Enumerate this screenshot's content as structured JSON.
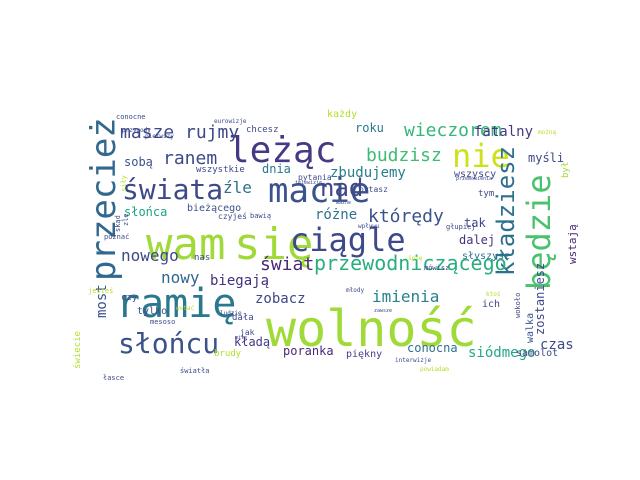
{
  "word_cloud": {
    "background": "#ffffff",
    "words": [
      {
        "text": "wolność",
        "color": "#a0da39"
      },
      {
        "text": "wam",
        "color": "#a0da39"
      },
      {
        "text": "się",
        "color": "#a0da39"
      },
      {
        "text": "leżąc",
        "color": "#443a83"
      },
      {
        "text": "macie",
        "color": "#3b528b"
      },
      {
        "text": "ramię",
        "color": "#2a788e"
      },
      {
        "text": "ciągle",
        "color": "#3e4989"
      },
      {
        "text": "przecież",
        "color": "#31688e"
      },
      {
        "text": "świata",
        "color": "#3e4989"
      },
      {
        "text": "nie",
        "color": "#cde11d"
      },
      {
        "text": "będzie",
        "color": "#4ac16d"
      },
      {
        "text": "nad",
        "color": "#3f4788"
      },
      {
        "text": "słońcu",
        "color": "#3b528b"
      },
      {
        "text": "kładziesz",
        "color": "#2d708e"
      },
      {
        "text": "przewodniczącego",
        "color": "#29af7f"
      },
      {
        "text": "wieczorem",
        "color": "#35b779"
      },
      {
        "text": "masze rujmy",
        "color": "#3e4989"
      },
      {
        "text": "ranem",
        "color": "#3e4989"
      },
      {
        "text": "świat",
        "color": "#482878"
      },
      {
        "text": "budzisz",
        "color": "#3dbc74"
      },
      {
        "text": "zbudujemy",
        "color": "#287d8e"
      },
      {
        "text": "którędy",
        "color": "#3b528b"
      },
      {
        "text": "imienia",
        "color": "#26828e"
      },
      {
        "text": "nowego",
        "color": "#3e4989"
      },
      {
        "text": "nowy",
        "color": "#31688e"
      },
      {
        "text": "fatalny",
        "color": "#443983"
      },
      {
        "text": "różne",
        "color": "#2c728e"
      },
      {
        "text": "most",
        "color": "#3b528b"
      },
      {
        "text": "źle",
        "color": "#2d708e"
      },
      {
        "text": "czas",
        "color": "#3e4989"
      },
      {
        "text": "zobacz",
        "color": "#3e4989"
      },
      {
        "text": "biegają",
        "color": "#472d7b"
      },
      {
        "text": "dalej",
        "color": "#46337f"
      },
      {
        "text": "poranka",
        "color": "#482878"
      },
      {
        "text": "siódmego",
        "color": "#22a884"
      },
      {
        "text": "conocna",
        "color": "#2c728e"
      },
      {
        "text": "piękny",
        "color": "#433e85"
      },
      {
        "text": "kładą",
        "color": "#443983"
      },
      {
        "text": "sobą",
        "color": "#3b528b"
      },
      {
        "text": "dnia",
        "color": "#2a788e"
      },
      {
        "text": "tak",
        "color": "#3e4989"
      },
      {
        "text": "myśli",
        "color": "#3e4989"
      },
      {
        "text": "wszyscy",
        "color": "#3e4989"
      },
      {
        "text": "walka",
        "color": "#3b528b"
      },
      {
        "text": "zostaniesz",
        "color": "#3e4989"
      },
      {
        "text": "słyszysz",
        "color": "#2c728e"
      },
      {
        "text": "wstają",
        "color": "#482878"
      },
      {
        "text": "ich",
        "color": "#3e4989"
      },
      {
        "text": "samolot",
        "color": "#3e4989"
      },
      {
        "text": "bieżącego",
        "color": "#3b528b"
      },
      {
        "text": "słońca",
        "color": "#20a386"
      },
      {
        "text": "roku",
        "color": "#2a788e"
      },
      {
        "text": "każdy",
        "color": "#b5de2b"
      },
      {
        "text": "chcesz",
        "color": "#3e4989"
      },
      {
        "text": "wszystkie",
        "color": "#3e4989"
      },
      {
        "text": "czy",
        "color": "#3e4989"
      },
      {
        "text": "tylko",
        "color": "#3b528b"
      },
      {
        "text": "nas",
        "color": "#3e4989"
      },
      {
        "text": "brudy",
        "color": "#b5de2b"
      },
      {
        "text": "dała",
        "color": "#3e4989"
      },
      {
        "text": "jak",
        "color": "#3e4989"
      },
      {
        "text": "tym",
        "color": "#3e4989"
      },
      {
        "text": "pytasz",
        "color": "#3e4989"
      },
      {
        "text": "pytania",
        "color": "#3e4989"
      },
      {
        "text": "czyjeś",
        "color": "#3e4989"
      },
      {
        "text": "bawią",
        "color": "#3e4989"
      },
      {
        "text": "głupiej",
        "color": "#3e4989"
      },
      {
        "text": "mówisz",
        "color": "#3e4989"
      },
      {
        "text": "ludzie",
        "color": "#3e4989"
      },
      {
        "text": "świecie",
        "color": "#b5de2b"
      },
      {
        "text": "jesteś",
        "color": "#b5de2b"
      },
      {
        "text": "poznać",
        "color": "#3e4989"
      },
      {
        "text": "przygody",
        "color": "#3e4989"
      },
      {
        "text": "był",
        "color": "#a0da39"
      },
      {
        "text": "wpływu",
        "color": "#3e4989"
      },
      {
        "text": "młody",
        "color": "#3e4989"
      },
      {
        "text": "łasce",
        "color": "#3e4989"
      },
      {
        "text": "światła",
        "color": "#3e4989"
      },
      {
        "text": "wstać",
        "color": "#b5de2b"
      },
      {
        "text": "mesoso",
        "color": "#3e4989"
      },
      {
        "text": "powiadam",
        "color": "#b5de2b"
      },
      {
        "text": "interwizje",
        "color": "#3e4989"
      },
      {
        "text": "wokoło",
        "color": "#3e4989"
      },
      {
        "text": "conocne",
        "color": "#3e4989"
      },
      {
        "text": "eurowizje",
        "color": "#3e4989"
      },
      {
        "text": "możną",
        "color": "#b5de2b"
      },
      {
        "text": "pierwszy",
        "color": "#3e4989"
      },
      {
        "text": "skąd",
        "color": "#3e4989"
      },
      {
        "text": "telewizje",
        "color": "#3e4989"
      },
      {
        "text": "przemówienia",
        "color": "#3e4989"
      },
      {
        "text": "zawsze",
        "color": "#3e4989"
      },
      {
        "text": "siły",
        "color": "#b5de2b"
      },
      {
        "text": "zle",
        "color": "#3e4989"
      },
      {
        "text": "ktoś",
        "color": "#b5de2b"
      },
      {
        "text": "mile",
        "color": "#3e4989"
      },
      {
        "text": "ważne",
        "color": "#3e4989"
      },
      {
        "text": "śpię",
        "color": "#b5de2b"
      }
    ]
  }
}
